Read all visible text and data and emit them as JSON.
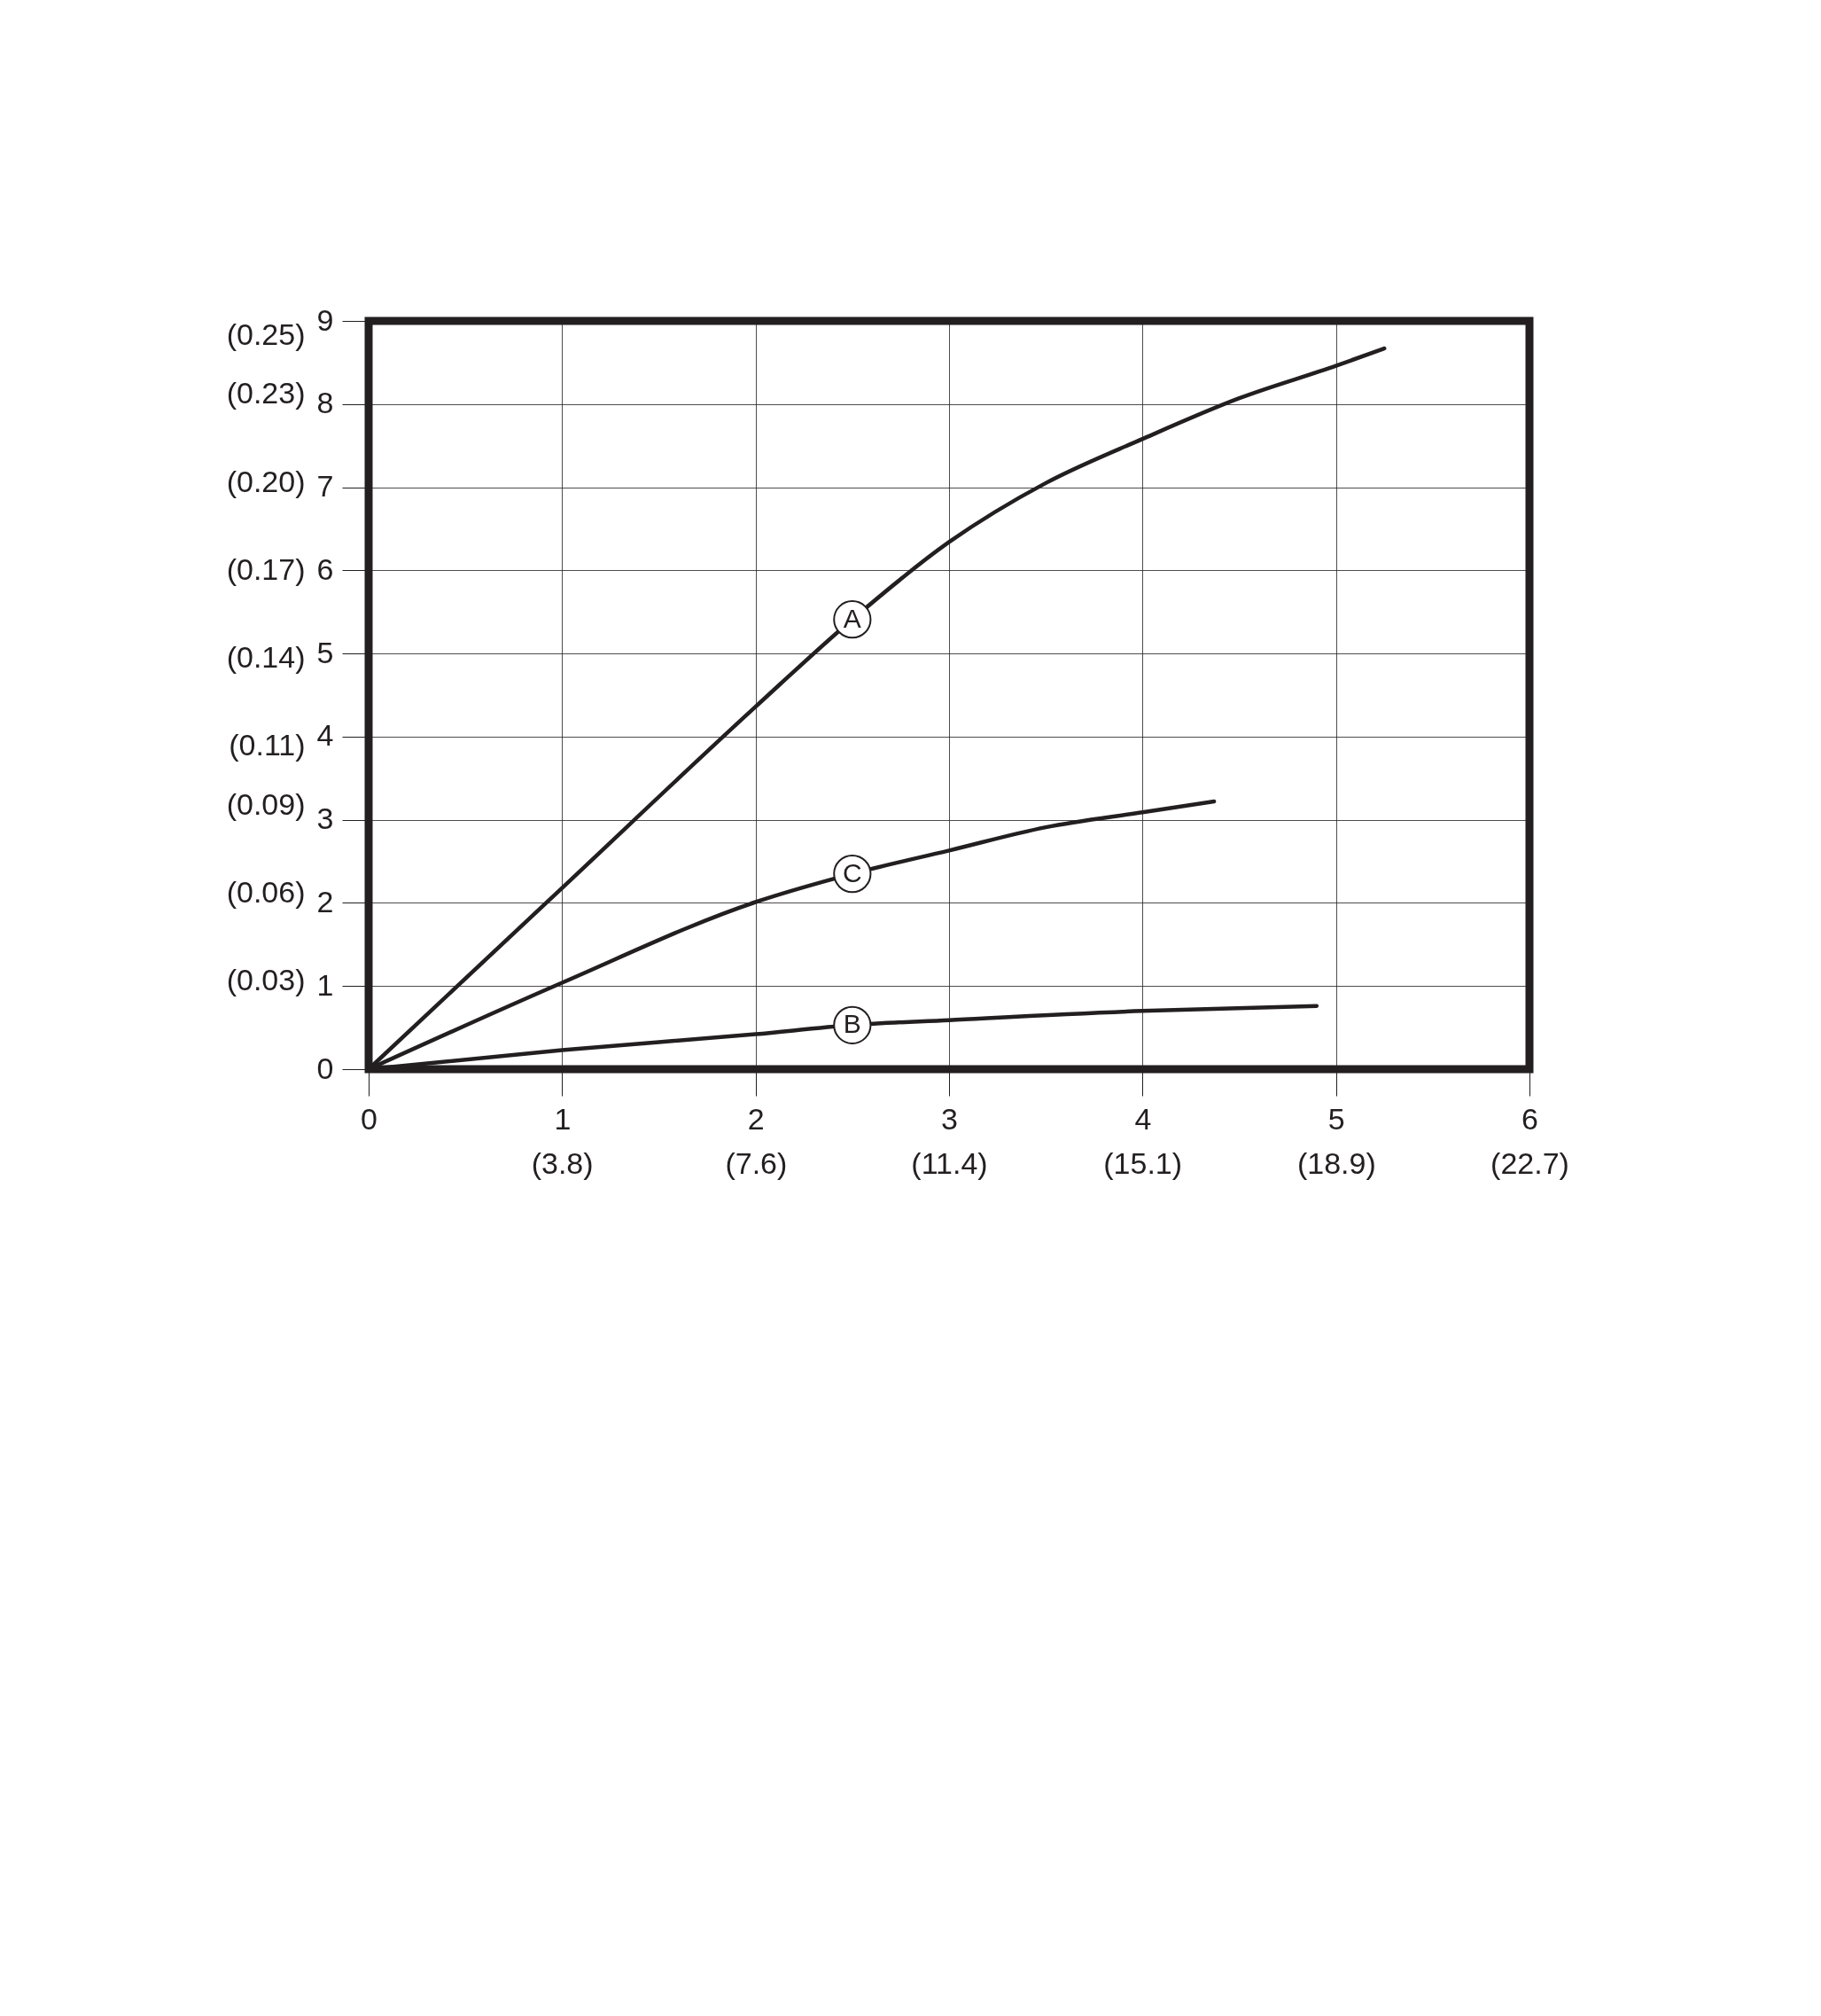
{
  "chart_data": {
    "type": "line",
    "xlim": [
      0,
      6
    ],
    "xticks": [
      0,
      1,
      2,
      3,
      4,
      5,
      6
    ],
    "x2lim": [
      0,
      22.7
    ],
    "x2ticks": [
      {
        "value": 3.78,
        "label": "(3.8)"
      },
      {
        "value": 7.57,
        "label": "(7.6)"
      },
      {
        "value": 11.35,
        "label": "(11.4)"
      },
      {
        "value": 15.13,
        "label": "(15.1)"
      },
      {
        "value": 18.92,
        "label": "(18.9)"
      },
      {
        "value": 22.7,
        "label": "(22.7)"
      }
    ],
    "ylim": [
      0,
      9
    ],
    "yticks": [
      0,
      1,
      2,
      3,
      4,
      5,
      6,
      7,
      8,
      9
    ],
    "y2lim": [
      0,
      0.255
    ],
    "y2ticks": [
      {
        "value": 0.03,
        "label": "(0.03)"
      },
      {
        "value": 0.06,
        "label": "(0.06)"
      },
      {
        "value": 0.09,
        "label": "(0.09)"
      },
      {
        "value": 0.11,
        "label": "(0.11)"
      },
      {
        "value": 0.14,
        "label": "(0.14)"
      },
      {
        "value": 0.17,
        "label": "(0.17)"
      },
      {
        "value": 0.2,
        "label": "(0.20)"
      },
      {
        "value": 0.23,
        "label": "(0.23)"
      },
      {
        "value": 0.25,
        "label": "(0.25)"
      }
    ],
    "grid": true,
    "line_style": "solid",
    "series": [
      {
        "name": "A",
        "color": "#231f20",
        "x": [
          0,
          1,
          2,
          2.5,
          3,
          3.5,
          4,
          4.5,
          5,
          5.25
        ],
        "values": [
          0,
          2.18,
          4.36,
          5.41,
          6.34,
          7.05,
          7.58,
          8.07,
          8.46,
          8.67
        ]
      },
      {
        "name": "B",
        "color": "#231f20",
        "x": [
          0,
          1,
          2,
          2.5,
          3,
          4,
          4.9
        ],
        "values": [
          0,
          0.23,
          0.42,
          0.53,
          0.59,
          0.7,
          0.76
        ]
      },
      {
        "name": "C",
        "color": "#231f20",
        "x": [
          0,
          1,
          2,
          2.5,
          3,
          3.5,
          4,
          4.37
        ],
        "values": [
          0,
          1.04,
          2.01,
          2.35,
          2.63,
          2.91,
          3.09,
          3.22
        ]
      }
    ]
  }
}
